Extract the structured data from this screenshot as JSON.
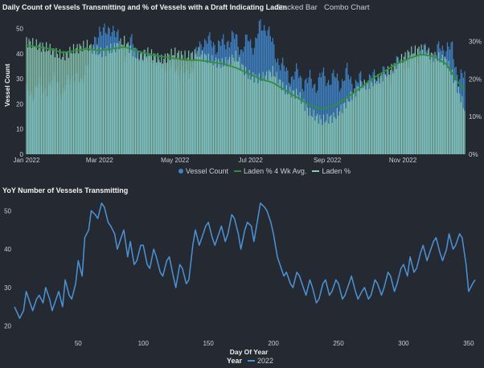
{
  "header": {
    "chart1_title": "Daily Count of Vessels Transmitting and % of Vessels with a Draft Indicating Laden",
    "tab_stacked": "Stacked Bar",
    "tab_combo": "Combo Chart",
    "chart2_title": "YoY Number of Vessels Transmitting"
  },
  "legend1": {
    "vessel_count": "Vessel Count",
    "laden_avg": "Laden % 4 Wk Avg.",
    "laden": "Laden %"
  },
  "legend2": {
    "title": "Year",
    "series": "2022"
  },
  "colors": {
    "background": "#252a32",
    "vessel_count": "#3f82c4",
    "laden_fill": "#8ccbb6",
    "laden_avg": "#2f8f3a",
    "yoy_line": "#4c93d6"
  },
  "chart_data": [
    {
      "type": "bar",
      "title": "Daily Count of Vessels Transmitting and % of Vessels with a Draft Indicating Laden",
      "xlabel": "",
      "ylabel": "Vessel Count",
      "ylim": [
        0,
        55
      ],
      "y2lim": [
        0,
        36.7
      ],
      "yticks": [
        0,
        10,
        20,
        30,
        40,
        50
      ],
      "y2ticks": [
        "0%",
        "10%",
        "20%",
        "30%"
      ],
      "xticks": [
        {
          "label": "Jan 2022",
          "day": 1
        },
        {
          "label": "Mar 2022",
          "day": 60
        },
        {
          "label": "May 2022",
          "day": 121
        },
        {
          "label": "Jul 2022",
          "day": 182
        },
        {
          "label": "Sep 2022",
          "day": 244
        },
        {
          "label": "Nov 2022",
          "day": 305
        }
      ],
      "legend_position": "bottom-center",
      "vessel_count_anchors": [
        [
          1,
          25
        ],
        [
          5,
          22
        ],
        [
          10,
          29
        ],
        [
          15,
          24
        ],
        [
          20,
          28
        ],
        [
          25,
          30
        ],
        [
          30,
          24
        ],
        [
          35,
          29
        ],
        [
          40,
          32
        ],
        [
          45,
          27
        ],
        [
          50,
          37
        ],
        [
          55,
          43
        ],
        [
          60,
          50
        ],
        [
          65,
          48
        ],
        [
          70,
          51
        ],
        [
          75,
          46
        ],
        [
          80,
          40
        ],
        [
          85,
          45
        ],
        [
          90,
          42
        ],
        [
          95,
          37
        ],
        [
          100,
          41
        ],
        [
          105,
          35
        ],
        [
          110,
          38
        ],
        [
          115,
          33
        ],
        [
          120,
          38
        ],
        [
          125,
          30
        ],
        [
          130,
          35
        ],
        [
          135,
          32
        ],
        [
          140,
          45
        ],
        [
          145,
          43
        ],
        [
          150,
          47
        ],
        [
          155,
          41
        ],
        [
          160,
          46
        ],
        [
          165,
          44
        ],
        [
          170,
          48
        ],
        [
          175,
          40
        ],
        [
          180,
          47
        ],
        [
          185,
          42
        ],
        [
          190,
          52
        ],
        [
          195,
          50
        ],
        [
          200,
          44
        ],
        [
          205,
          36
        ],
        [
          210,
          34
        ],
        [
          215,
          30
        ],
        [
          220,
          33
        ],
        [
          225,
          28
        ],
        [
          230,
          30
        ],
        [
          235,
          27
        ],
        [
          240,
          32
        ],
        [
          245,
          29
        ],
        [
          250,
          31
        ],
        [
          255,
          28
        ],
        [
          260,
          33
        ],
        [
          265,
          27
        ],
        [
          270,
          30
        ],
        [
          275,
          28
        ],
        [
          280,
          31
        ],
        [
          285,
          30
        ],
        [
          290,
          33
        ],
        [
          295,
          31
        ],
        [
          300,
          36
        ],
        [
          305,
          38
        ],
        [
          310,
          35
        ],
        [
          315,
          41
        ],
        [
          320,
          39
        ],
        [
          325,
          43
        ],
        [
          330,
          37
        ],
        [
          335,
          44
        ],
        [
          340,
          41
        ],
        [
          345,
          43
        ],
        [
          350,
          29
        ],
        [
          355,
          32
        ]
      ],
      "laden_pct_anchors": [
        [
          1,
          30
        ],
        [
          10,
          29
        ],
        [
          20,
          28
        ],
        [
          30,
          26
        ],
        [
          40,
          28
        ],
        [
          50,
          29
        ],
        [
          60,
          27
        ],
        [
          70,
          28
        ],
        [
          80,
          30
        ],
        [
          90,
          26
        ],
        [
          100,
          27
        ],
        [
          110,
          25
        ],
        [
          120,
          27
        ],
        [
          130,
          26
        ],
        [
          140,
          27
        ],
        [
          150,
          25
        ],
        [
          160,
          24
        ],
        [
          170,
          26
        ],
        [
          180,
          21
        ],
        [
          190,
          20
        ],
        [
          200,
          22
        ],
        [
          210,
          17
        ],
        [
          220,
          16
        ],
        [
          230,
          11
        ],
        [
          240,
          9
        ],
        [
          250,
          10
        ],
        [
          260,
          14
        ],
        [
          270,
          18
        ],
        [
          280,
          19
        ],
        [
          290,
          21
        ],
        [
          300,
          24
        ],
        [
          310,
          27
        ],
        [
          320,
          28
        ],
        [
          330,
          26
        ],
        [
          340,
          25
        ],
        [
          350,
          17
        ],
        [
          355,
          12
        ]
      ],
      "laden_avg_anchors": [
        [
          1,
          29
        ],
        [
          10,
          28.5
        ],
        [
          20,
          28
        ],
        [
          30,
          27
        ],
        [
          40,
          27.5
        ],
        [
          50,
          28
        ],
        [
          60,
          27.5
        ],
        [
          70,
          28
        ],
        [
          80,
          28.5
        ],
        [
          90,
          27.5
        ],
        [
          100,
          26.5
        ],
        [
          110,
          26
        ],
        [
          120,
          25.5
        ],
        [
          130,
          25
        ],
        [
          140,
          25
        ],
        [
          150,
          24.5
        ],
        [
          160,
          24
        ],
        [
          170,
          23
        ],
        [
          180,
          21.5
        ],
        [
          190,
          20
        ],
        [
          200,
          19
        ],
        [
          210,
          17
        ],
        [
          220,
          15
        ],
        [
          230,
          13
        ],
        [
          240,
          12
        ],
        [
          250,
          13
        ],
        [
          260,
          15
        ],
        [
          270,
          17.5
        ],
        [
          280,
          20
        ],
        [
          290,
          22
        ],
        [
          300,
          24
        ],
        [
          310,
          25.5
        ],
        [
          320,
          26.5
        ],
        [
          330,
          26
        ],
        [
          340,
          24
        ],
        [
          350,
          19
        ],
        [
          355,
          17
        ]
      ]
    },
    {
      "type": "line",
      "title": "YoY Number of Vessels Transmitting",
      "xlabel": "Day Of Year",
      "ylabel": "",
      "xlim": [
        1,
        355
      ],
      "ylim": [
        17,
        53
      ],
      "xticks": [
        50,
        100,
        150,
        200,
        250,
        300,
        350
      ],
      "yticks": [
        20,
        30,
        40,
        50
      ],
      "series": [
        {
          "name": "2022",
          "anchors": [
            [
              1,
              25
            ],
            [
              5,
              22
            ],
            [
              8,
              24
            ],
            [
              10,
              29
            ],
            [
              13,
              26
            ],
            [
              15,
              24
            ],
            [
              18,
              27
            ],
            [
              20,
              28
            ],
            [
              23,
              26
            ],
            [
              25,
              30
            ],
            [
              28,
              27
            ],
            [
              30,
              24
            ],
            [
              33,
              27
            ],
            [
              35,
              29
            ],
            [
              38,
              25
            ],
            [
              40,
              32
            ],
            [
              43,
              28
            ],
            [
              45,
              27
            ],
            [
              48,
              31
            ],
            [
              50,
              37
            ],
            [
              53,
              33
            ],
            [
              55,
              43
            ],
            [
              58,
              45
            ],
            [
              60,
              50
            ],
            [
              63,
              49
            ],
            [
              65,
              48
            ],
            [
              68,
              52
            ],
            [
              70,
              51
            ],
            [
              73,
              47
            ],
            [
              75,
              46
            ],
            [
              78,
              44
            ],
            [
              80,
              40
            ],
            [
              83,
              43
            ],
            [
              85,
              45
            ],
            [
              88,
              38
            ],
            [
              90,
              42
            ],
            [
              93,
              36
            ],
            [
              95,
              37
            ],
            [
              98,
              41
            ],
            [
              100,
              41
            ],
            [
              103,
              36
            ],
            [
              105,
              35
            ],
            [
              108,
              40
            ],
            [
              110,
              38
            ],
            [
              113,
              34
            ],
            [
              115,
              33
            ],
            [
              118,
              37
            ],
            [
              120,
              38
            ],
            [
              123,
              33
            ],
            [
              125,
              30
            ],
            [
              128,
              36
            ],
            [
              130,
              35
            ],
            [
              133,
              31
            ],
            [
              135,
              32
            ],
            [
              138,
              41
            ],
            [
              140,
              45
            ],
            [
              143,
              41
            ],
            [
              145,
              43
            ],
            [
              148,
              46
            ],
            [
              150,
              47
            ],
            [
              153,
              43
            ],
            [
              155,
              41
            ],
            [
              158,
              44
            ],
            [
              160,
              46
            ],
            [
              163,
              42
            ],
            [
              165,
              44
            ],
            [
              168,
              49
            ],
            [
              170,
              48
            ],
            [
              173,
              44
            ],
            [
              175,
              40
            ],
            [
              178,
              45
            ],
            [
              180,
              47
            ],
            [
              183,
              46
            ],
            [
              185,
              42
            ],
            [
              188,
              48
            ],
            [
              190,
              52
            ],
            [
              193,
              51
            ],
            [
              195,
              50
            ],
            [
              198,
              47
            ],
            [
              200,
              44
            ],
            [
              203,
              38
            ],
            [
              205,
              36
            ],
            [
              208,
              33
            ],
            [
              210,
              34
            ],
            [
              213,
              31
            ],
            [
              215,
              30
            ],
            [
              218,
              34
            ],
            [
              220,
              33
            ],
            [
              223,
              30
            ],
            [
              225,
              28
            ],
            [
              228,
              32
            ],
            [
              230,
              30
            ],
            [
              233,
              26
            ],
            [
              235,
              27
            ],
            [
              238,
              31
            ],
            [
              240,
              32
            ],
            [
              243,
              28
            ],
            [
              245,
              29
            ],
            [
              248,
              32
            ],
            [
              250,
              31
            ],
            [
              253,
              27
            ],
            [
              255,
              28
            ],
            [
              258,
              31
            ],
            [
              260,
              33
            ],
            [
              263,
              29
            ],
            [
              265,
              27
            ],
            [
              268,
              29
            ],
            [
              270,
              30
            ],
            [
              273,
              27
            ],
            [
              275,
              28
            ],
            [
              278,
              32
            ],
            [
              280,
              31
            ],
            [
              283,
              28
            ],
            [
              285,
              30
            ],
            [
              288,
              34
            ],
            [
              290,
              33
            ],
            [
              293,
              29
            ],
            [
              295,
              31
            ],
            [
              298,
              35
            ],
            [
              300,
              36
            ],
            [
              303,
              33
            ],
            [
              305,
              38
            ],
            [
              308,
              34
            ],
            [
              310,
              35
            ],
            [
              313,
              39
            ],
            [
              315,
              41
            ],
            [
              318,
              37
            ],
            [
              320,
              39
            ],
            [
              323,
              42
            ],
            [
              325,
              43
            ],
            [
              328,
              39
            ],
            [
              330,
              37
            ],
            [
              333,
              40
            ],
            [
              335,
              44
            ],
            [
              338,
              40
            ],
            [
              340,
              41
            ],
            [
              343,
              44
            ],
            [
              345,
              43
            ],
            [
              348,
              36
            ],
            [
              350,
              29
            ],
            [
              353,
              31
            ],
            [
              355,
              32
            ]
          ]
        }
      ]
    }
  ]
}
